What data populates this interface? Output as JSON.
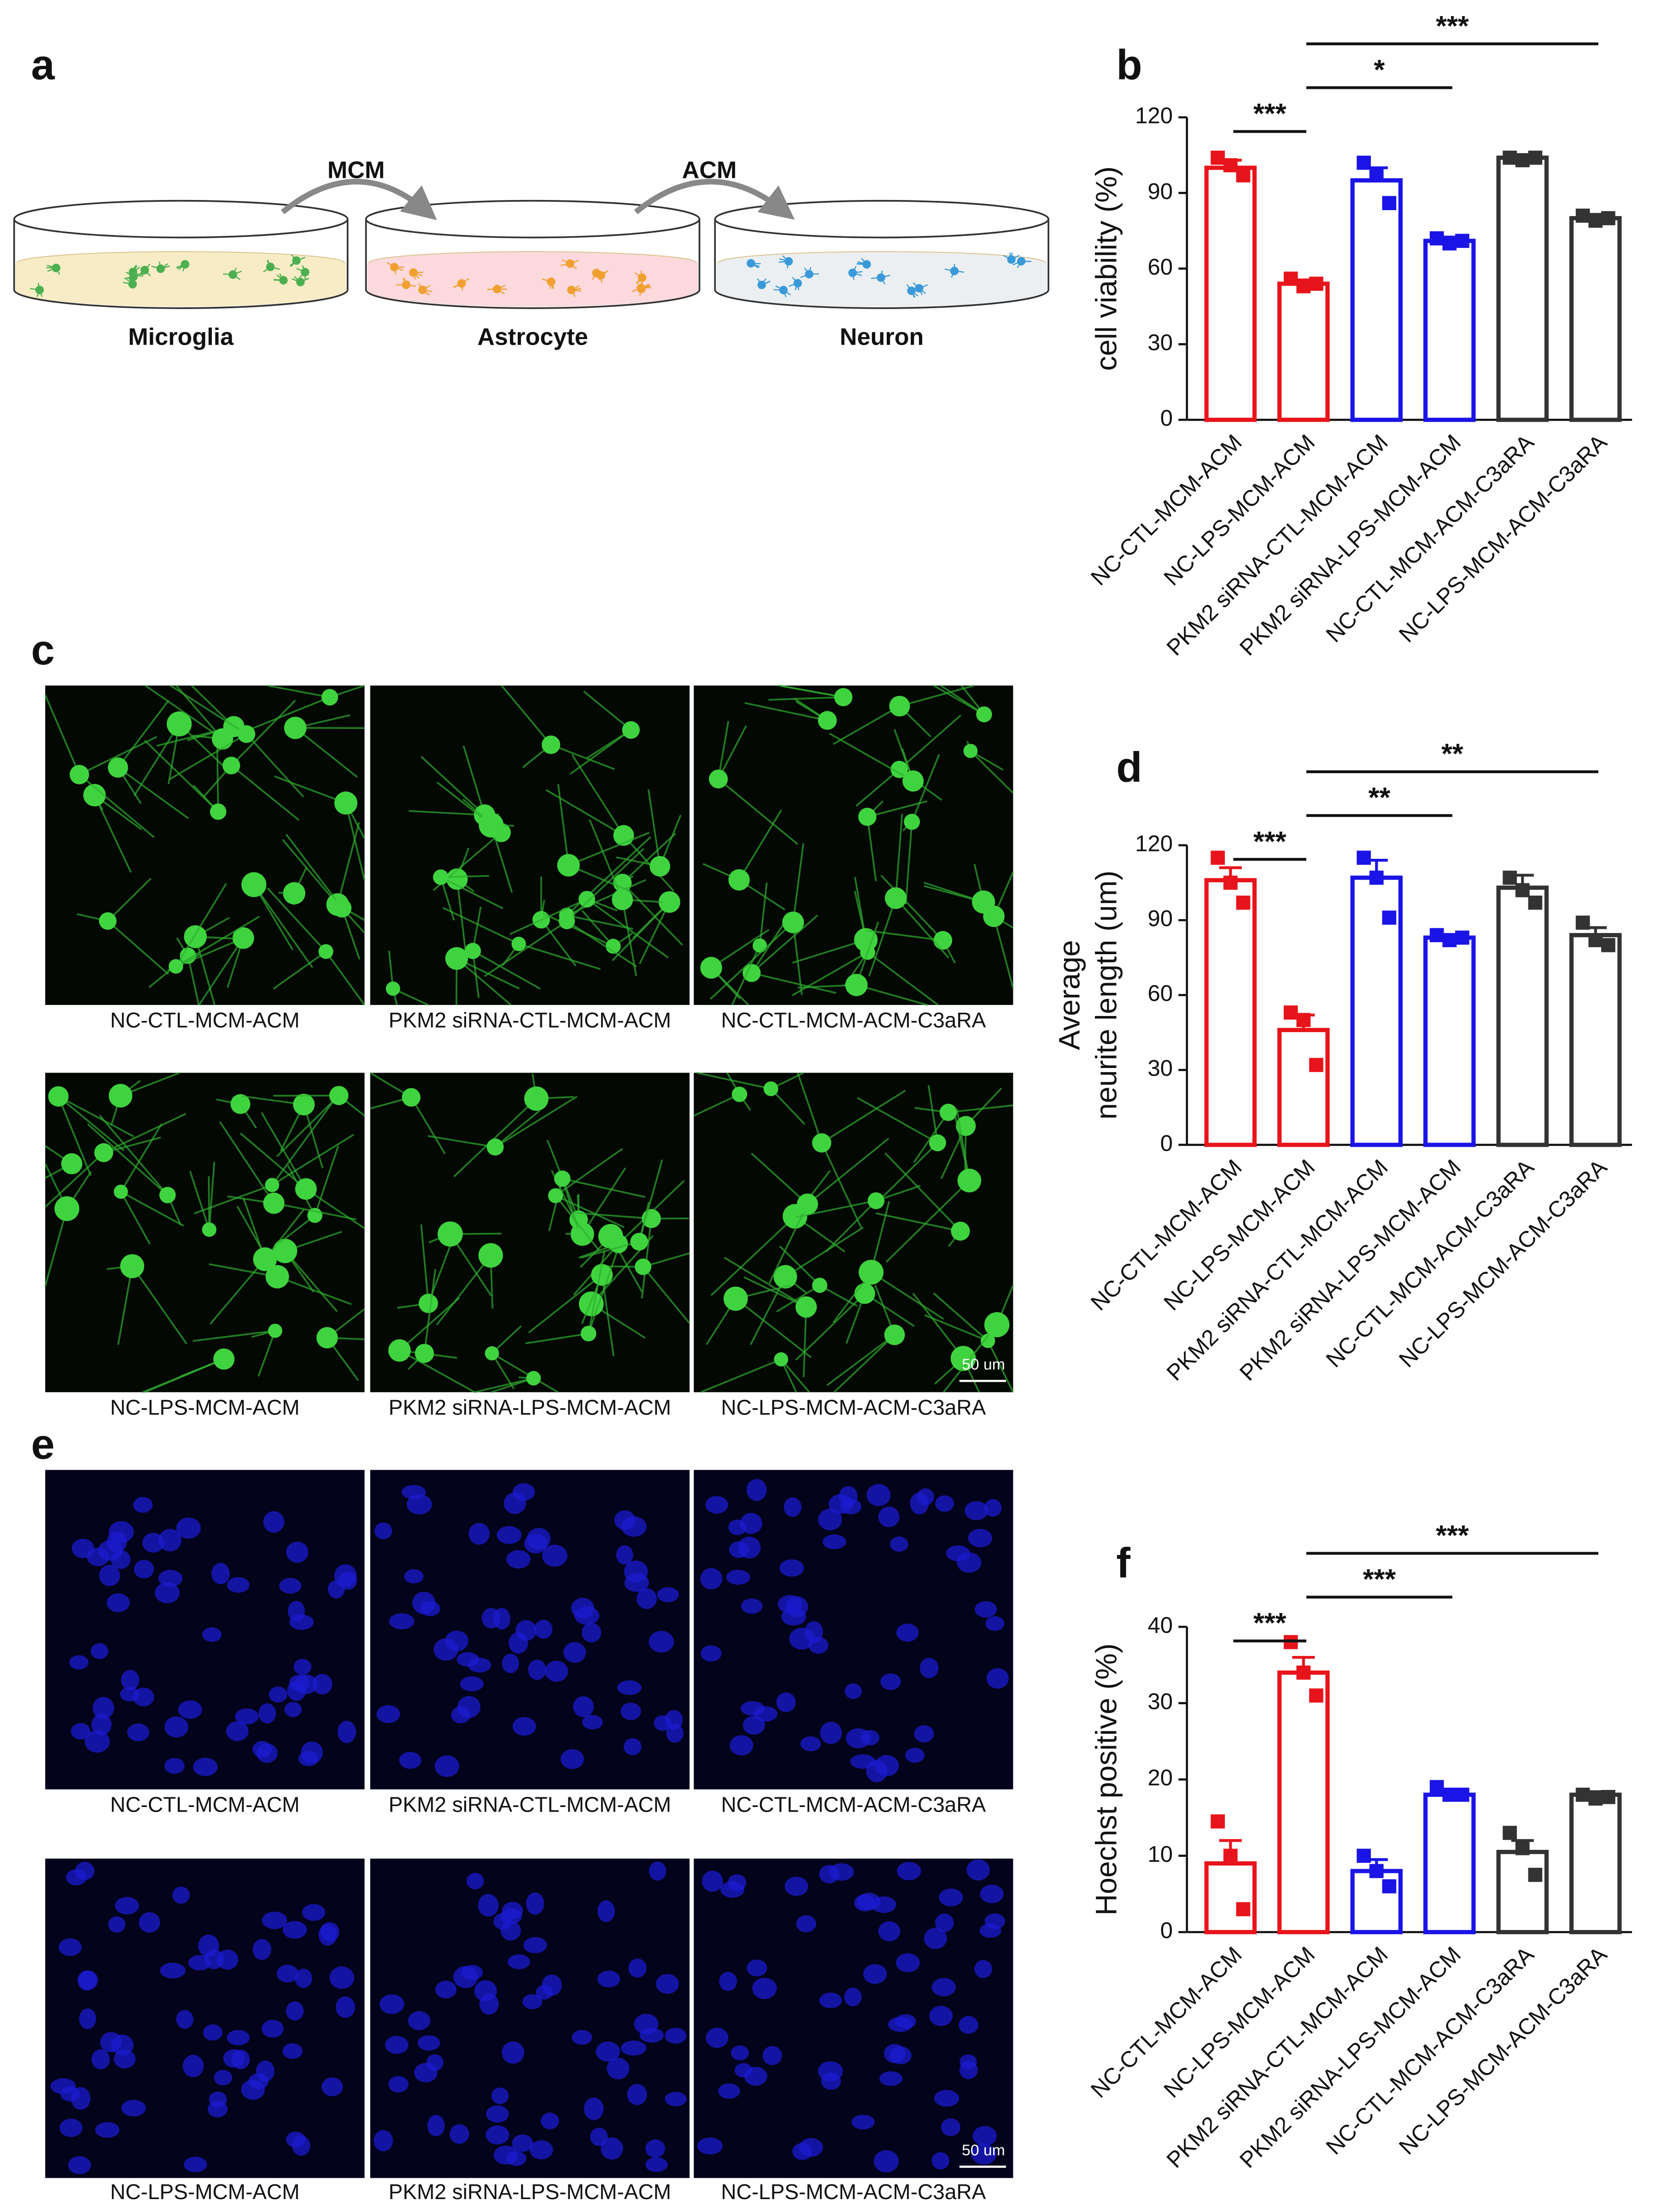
{
  "figure": {
    "panel_labels": [
      "a",
      "b",
      "c",
      "d",
      "e",
      "f"
    ],
    "diagram": {
      "cells": [
        "Microglia",
        "Astrocyte",
        "Neuron"
      ],
      "media": [
        "MCM",
        "ACM"
      ]
    },
    "image_captions": {
      "c": [
        [
          "NC-CTL-MCM-ACM",
          "PKM2 siRNA-CTL-MCM-ACM",
          "NC-CTL-MCM-ACM-C3aRA"
        ],
        [
          "NC-LPS-MCM-ACM",
          "PKM2 siRNA-LPS-MCM-ACM",
          "NC-LPS-MCM-ACM-C3aRA"
        ]
      ],
      "e": [
        [
          "NC-CTL-MCM-ACM",
          "PKM2 siRNA-CTL-MCM-ACM",
          "NC-CTL-MCM-ACM-C3aRA"
        ],
        [
          "NC-LPS-MCM-ACM",
          "PKM2 siRNA-LPS-MCM-ACM",
          "NC-LPS-MCM-ACM-C3aRA"
        ]
      ]
    },
    "scale_bar": "50 um"
  },
  "chart_data": [
    {
      "type": "bar",
      "y_label": [
        "cell viability (%)"
      ],
      "categories": [
        "NC-CTL-MCM-ACM",
        "NC-LPS-MCM-ACM",
        "PKM2 siRNA-CTL-MCM-ACM",
        "PKM2 siRNA-LPS-MCM-ACM",
        "NC-CTL-MCM-ACM-C3aRA",
        "NC-LPS-MCM-ACM-C3aRA"
      ],
      "values": [
        100,
        54,
        95,
        71,
        104,
        80
      ],
      "errors": [
        3,
        1.5,
        5,
        1.5,
        1,
        1.5
      ],
      "points": [
        [
          104,
          101,
          97
        ],
        [
          56,
          53,
          54
        ],
        [
          102,
          97,
          86
        ],
        [
          72,
          70,
          71
        ],
        [
          104,
          103,
          104
        ],
        [
          81,
          79,
          80
        ]
      ],
      "colors": [
        "#e8141b",
        "#e8141b",
        "#1a14e6",
        "#1a14e6",
        "#333333",
        "#333333"
      ],
      "ylim": [
        0,
        120
      ],
      "yticks": [
        0,
        30,
        60,
        90,
        120
      ],
      "annotations": [
        {
          "text": "***",
          "from": "NC-CTL-MCM-ACM",
          "to": "NC-LPS-MCM-ACM"
        },
        {
          "text": "*",
          "from": "NC-LPS-MCM-ACM",
          "to": "PKM2 siRNA-LPS-MCM-ACM"
        },
        {
          "text": "***",
          "from": "NC-LPS-MCM-ACM",
          "to": "NC-LPS-MCM-ACM-C3aRA"
        }
      ]
    },
    {
      "type": "bar",
      "y_label": [
        "Average",
        "neurite length (um)"
      ],
      "categories": [
        "NC-CTL-MCM-ACM",
        "NC-LPS-MCM-ACM",
        "PKM2 siRNA-CTL-MCM-ACM",
        "PKM2 siRNA-LPS-MCM-ACM",
        "NC-CTL-MCM-ACM-C3aRA",
        "NC-LPS-MCM-ACM-C3aRA"
      ],
      "values": [
        106,
        46,
        107,
        83,
        103,
        84
      ],
      "errors": [
        5,
        6,
        7,
        1,
        5,
        3
      ],
      "points": [
        [
          115,
          105,
          97
        ],
        [
          53,
          50,
          32
        ],
        [
          115,
          107,
          91
        ],
        [
          84,
          82,
          83
        ],
        [
          107,
          102,
          97
        ],
        [
          89,
          82,
          80
        ]
      ],
      "colors": [
        "#e8141b",
        "#e8141b",
        "#1a14e6",
        "#1a14e6",
        "#333333",
        "#333333"
      ],
      "ylim": [
        0,
        120
      ],
      "yticks": [
        0,
        30,
        60,
        90,
        120
      ],
      "annotations": [
        {
          "text": "***",
          "from": "NC-CTL-MCM-ACM",
          "to": "NC-LPS-MCM-ACM"
        },
        {
          "text": "**",
          "from": "NC-LPS-MCM-ACM",
          "to": "PKM2 siRNA-LPS-MCM-ACM"
        },
        {
          "text": "**",
          "from": "NC-LPS-MCM-ACM",
          "to": "NC-LPS-MCM-ACM-C3aRA"
        }
      ]
    },
    {
      "type": "bar",
      "y_label": [
        "Hoechst positive (%)"
      ],
      "categories": [
        "NC-CTL-MCM-ACM",
        "NC-LPS-MCM-ACM",
        "PKM2 siRNA-CTL-MCM-ACM",
        "PKM2 siRNA-LPS-MCM-ACM",
        "NC-CTL-MCM-ACM-C3aRA",
        "NC-LPS-MCM-ACM-C3aRA"
      ],
      "values": [
        9,
        34,
        8,
        18,
        10.5,
        18
      ],
      "errors": [
        3,
        2,
        1.5,
        0.7,
        1.5,
        0.4
      ],
      "points": [
        [
          14.5,
          10,
          3
        ],
        [
          38,
          34,
          31
        ],
        [
          10,
          8,
          6
        ],
        [
          19,
          18,
          18
        ],
        [
          13,
          11,
          7.5
        ],
        [
          18,
          17.5,
          17.7
        ]
      ],
      "colors": [
        "#e8141b",
        "#e8141b",
        "#1a14e6",
        "#1a14e6",
        "#333333",
        "#333333"
      ],
      "ylim": [
        0,
        40
      ],
      "yticks": [
        0,
        10,
        20,
        30,
        40
      ],
      "annotations": [
        {
          "text": "***",
          "from": "NC-CTL-MCM-ACM",
          "to": "NC-LPS-MCM-ACM"
        },
        {
          "text": "***",
          "from": "NC-LPS-MCM-ACM",
          "to": "PKM2 siRNA-LPS-MCM-ACM"
        },
        {
          "text": "***",
          "from": "NC-LPS-MCM-ACM",
          "to": "NC-LPS-MCM-ACM-C3aRA"
        }
      ]
    }
  ]
}
